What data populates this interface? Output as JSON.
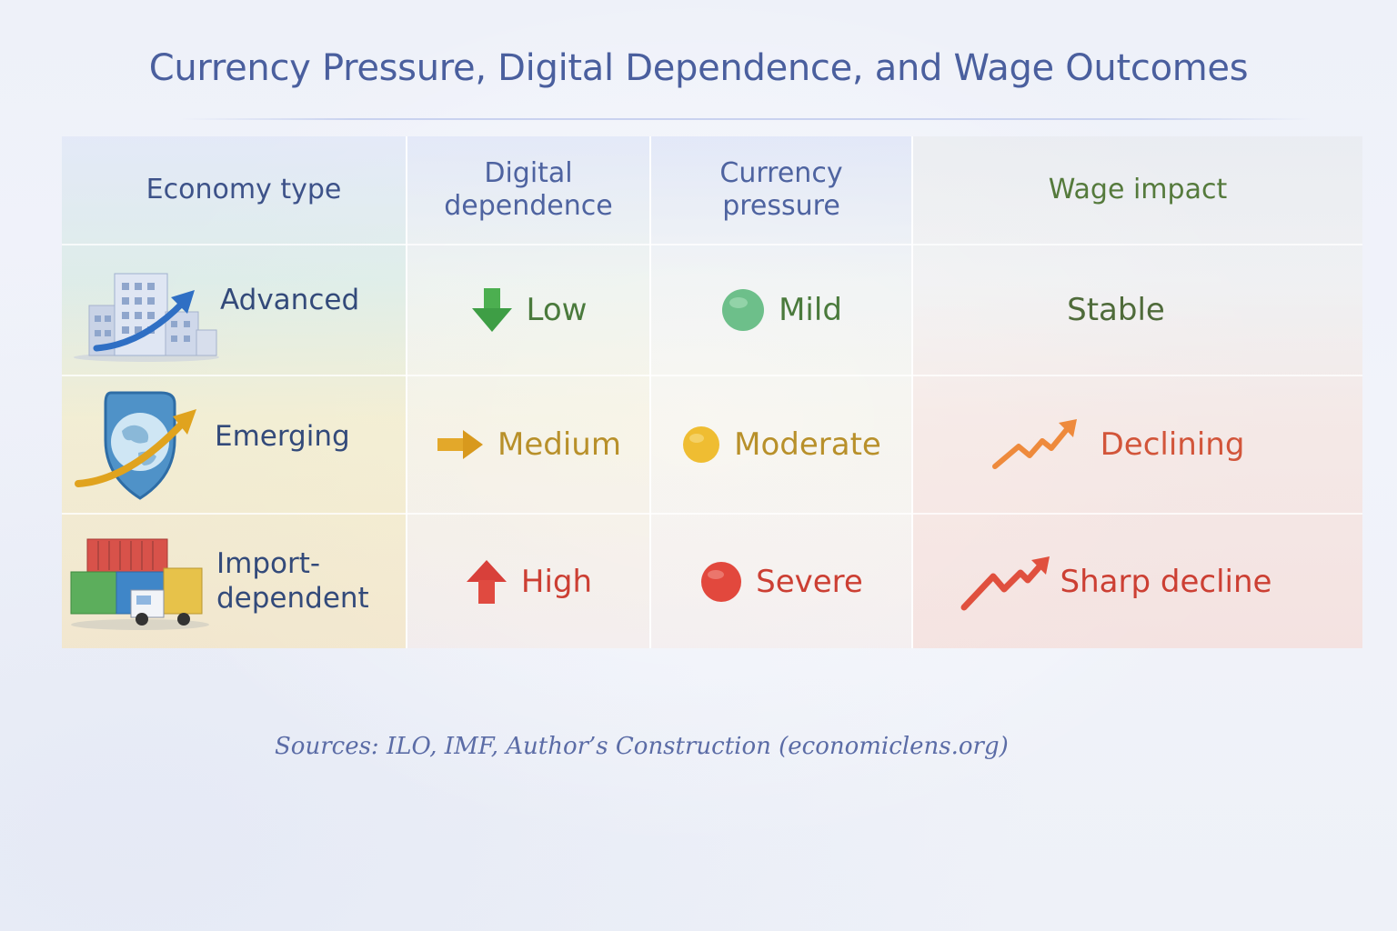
{
  "title": "Currency Pressure, Digital Dependence, and Wage Outcomes",
  "headers": {
    "economy_type": "Economy type",
    "digital_dependence": "Digital dependence",
    "currency_pressure": "Currency pressure",
    "wage_impact": "Wage impact"
  },
  "rows": [
    {
      "economy": "Advanced",
      "economy_icon": "city-growth-icon",
      "digital": "Low",
      "digital_icon": "arrow-down-icon",
      "currency": "Mild",
      "currency_icon": "green-dot-icon",
      "wage": "Stable",
      "colors": {
        "digital": "#4a7a3c",
        "currency": "#4a7a3c",
        "wage": "#4f6b3a",
        "band": "#dcebdc"
      }
    },
    {
      "economy": "Emerging",
      "economy_icon": "globe-shield-icon",
      "digital": "Medium",
      "digital_icon": "arrow-right-icon",
      "currency": "Moderate",
      "currency_icon": "yellow-dot-icon",
      "wage": "Declining",
      "wage_icon": "trend-zigzag-icon",
      "colors": {
        "digital": "#b8902a",
        "currency": "#b8902a",
        "wage": "#d2553a",
        "band": "#f3ecc8"
      }
    },
    {
      "economy": "Import-dependent",
      "economy_icon": "shipping-containers-icon",
      "digital": "High",
      "digital_icon": "arrow-up-icon",
      "currency": "Severe",
      "currency_icon": "red-dot-icon",
      "wage": "Sharp decline",
      "wage_icon": "trend-sharp-icon",
      "colors": {
        "digital": "#cc3f33",
        "currency": "#cc3f33",
        "wage": "#cc3f33",
        "band": "#f4e6c6"
      }
    }
  ],
  "sources": "Sources: ILO, IMF, Author’s Construction (economiclens.org)"
}
